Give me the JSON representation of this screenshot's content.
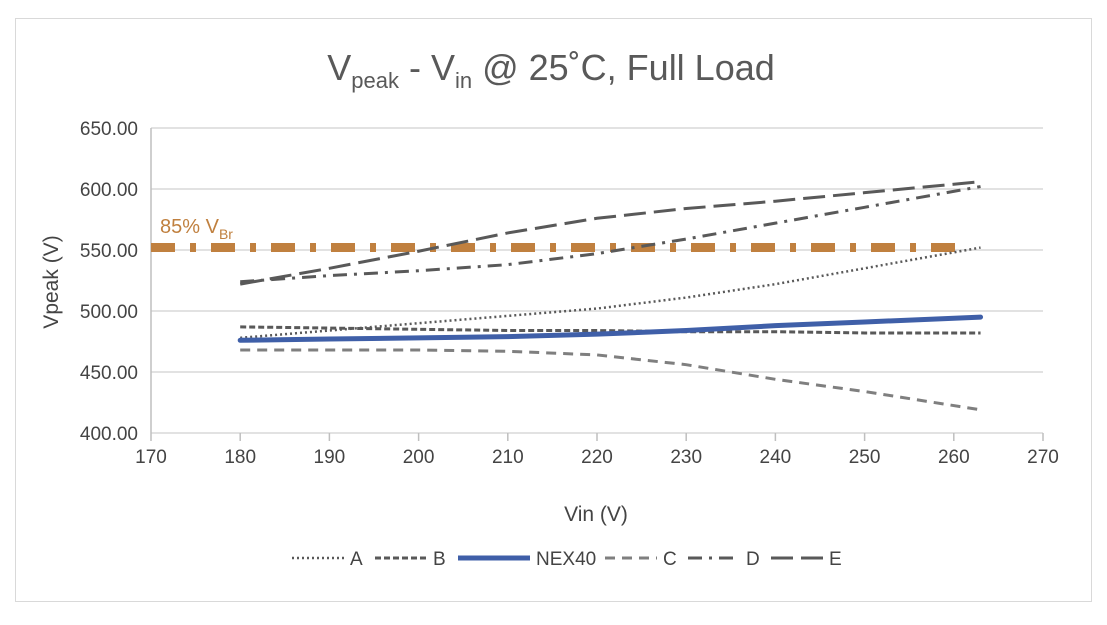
{
  "chart_data": {
    "type": "line",
    "title": {
      "main": "V",
      "sub1": "peak",
      "mid": " - V",
      "sub2": "in",
      "rest": " @ 25˚C, Full Load"
    },
    "xlabel": "Vin (V)",
    "ylabel": "Vpeak (V)",
    "xlim": [
      170,
      270
    ],
    "ylim": [
      400,
      650
    ],
    "xticks": [
      "170",
      "180",
      "190",
      "200",
      "210",
      "220",
      "230",
      "240",
      "250",
      "260",
      "270"
    ],
    "yticks": [
      "400.00",
      "450.00",
      "500.00",
      "550.00",
      "600.00",
      "650.00"
    ],
    "grid": "horizontal",
    "legend_position": "bottom",
    "x": [
      180,
      190,
      200,
      210,
      220,
      230,
      240,
      250,
      263
    ],
    "series": [
      {
        "name": "A",
        "style": "dotted",
        "color": "#595959",
        "values": [
          478,
          484,
          490,
          496,
          502,
          511,
          522,
          535,
          552
        ]
      },
      {
        "name": "B",
        "style": "short-dash",
        "color": "#595959",
        "values": [
          487,
          486,
          485,
          484,
          484,
          483,
          483,
          482,
          482
        ]
      },
      {
        "name": "NEX40",
        "style": "solid-thick",
        "color": "#3f5fa8",
        "values": [
          476,
          477,
          478,
          479,
          481,
          484,
          488,
          491,
          495
        ]
      },
      {
        "name": "C",
        "style": "dash",
        "color": "#7f7f7f",
        "values": [
          468,
          468,
          468,
          467,
          464,
          456,
          444,
          434,
          419
        ]
      },
      {
        "name": "D",
        "style": "dash-dot",
        "color": "#595959",
        "values": [
          524,
          529,
          533,
          538,
          547,
          559,
          572,
          585,
          602
        ]
      },
      {
        "name": "E",
        "style": "long-dash",
        "color": "#595959",
        "values": [
          522,
          535,
          549,
          564,
          576,
          584,
          590,
          597,
          606
        ]
      }
    ],
    "reference_line": {
      "label_main": "85% V",
      "label_sub": "Br",
      "value": 552,
      "color": "#c0803f"
    }
  }
}
